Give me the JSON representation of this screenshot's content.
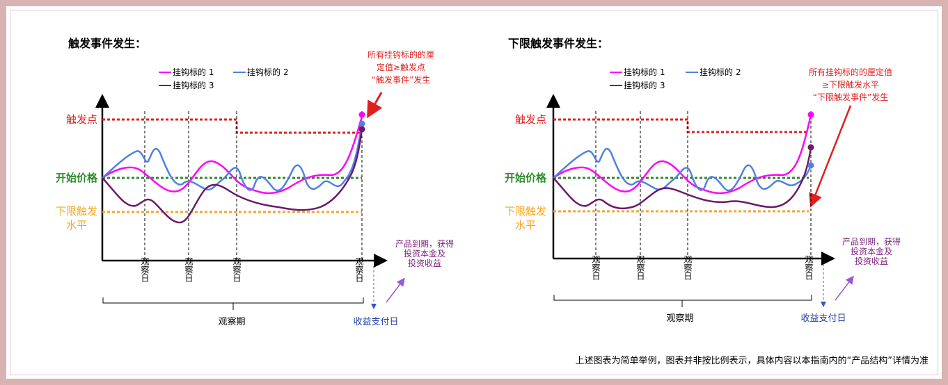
{
  "colors": {
    "hook1": "#ff00ff",
    "hook2": "#4f81e0",
    "hook3": "#6a1a6a",
    "trigger": "#e02020",
    "start": "#2a8a2a",
    "lower": "#f5a623",
    "arrow_red": "#e02020",
    "arrow_purple": "#9b59d0",
    "delivery_text": "#7a1f7a",
    "border": "#d9b2b2"
  },
  "diagrams": [
    {
      "title": "触发事件发生：",
      "legend": {
        "item1": "挂钩标的 1",
        "item2": "挂钩标的 2",
        "item3": "挂钩标的 3"
      },
      "annotation": [
        "所有挂钩标的的厘",
        "定值≥触发点",
        "“触发事件”发生"
      ],
      "axis_labels": {
        "trigger": "触发点",
        "start": "开始价格",
        "lower": [
          "下限触发",
          "水平"
        ]
      },
      "obs_days": [
        "观察日",
        "观察日",
        "观察日",
        "观察日"
      ],
      "maturity": [
        "产品到期，获得",
        "投资本金及",
        "投资收益"
      ],
      "period": "观察期",
      "payment_day": "收益支付日"
    },
    {
      "title": "下限触发事件发生：",
      "legend": {
        "item1": "挂钩标的 1",
        "item2": "挂钩标的 2",
        "item3": "挂钩标的 3"
      },
      "annotation": [
        "所有挂钩标的的厘定值",
        "≥下限触发水平",
        "“下限触发事件”发生"
      ],
      "axis_labels": {
        "trigger": "触发点",
        "start": "开始价格",
        "lower": [
          "下限触发",
          "水平"
        ]
      },
      "obs_days": [
        "观察日",
        "观察日",
        "观察日",
        "观察日"
      ],
      "maturity": [
        "产品到期，获得",
        "投资本金及",
        "投资收益"
      ],
      "period": "观察期",
      "payment_day": "收益支付日"
    }
  ],
  "footnote": "上述图表为简单举例，图表并非按比例表示，具体内容以本指南内的“产品结构”详情为准"
}
